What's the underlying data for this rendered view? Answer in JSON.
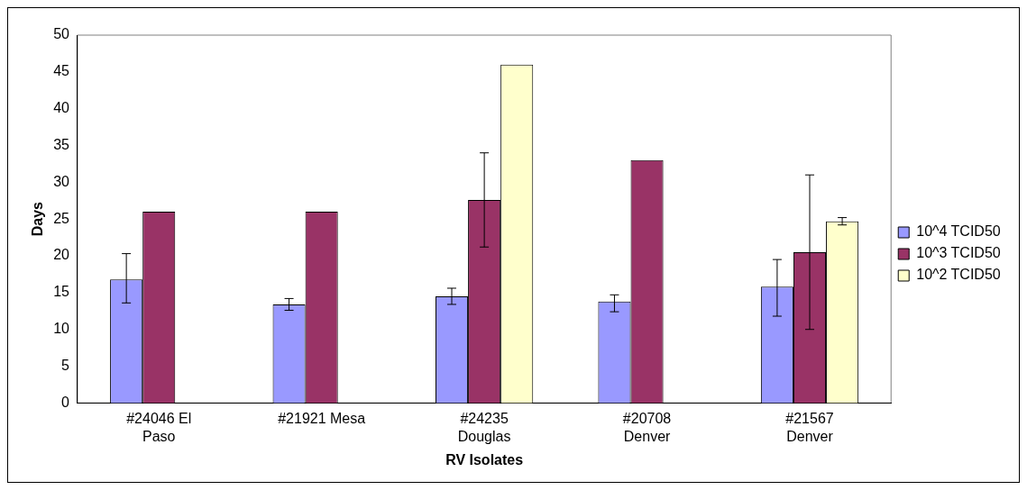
{
  "chart_data": {
    "type": "bar",
    "xlabel": "RV Isolates",
    "ylabel": "Days",
    "categories": [
      "#24046 El Paso",
      "#21921 Mesa",
      "#24235 Douglas",
      "#20708 Denver",
      "#21567 Denver"
    ],
    "series": [
      {
        "name": "10^4 TCID50",
        "color": "#9999ff",
        "values": [
          16.8,
          13.4,
          14.5,
          13.8,
          15.8
        ],
        "errors": [
          [
            13.6,
            20.3
          ],
          [
            12.6,
            14.2
          ],
          [
            13.4,
            15.6
          ],
          [
            12.4,
            14.7
          ],
          [
            11.8,
            19.5
          ]
        ]
      },
      {
        "name": "10^3 TCID50",
        "color": "#993366",
        "values": [
          26,
          26,
          27.6,
          33,
          20.5
        ],
        "errors": [
          null,
          null,
          [
            21.2,
            34
          ],
          null,
          [
            10,
            31
          ]
        ]
      },
      {
        "name": "10^2 TCID50",
        "color": "#ffffcc",
        "values": [
          null,
          null,
          46,
          null,
          24.7
        ],
        "errors": [
          null,
          null,
          null,
          null,
          [
            24.2,
            25.2
          ]
        ]
      }
    ],
    "ylim": [
      0,
      50
    ],
    "yticks": [
      0,
      5,
      10,
      15,
      20,
      25,
      30,
      35,
      40,
      45,
      50
    ],
    "grid": false,
    "legend": "right"
  }
}
